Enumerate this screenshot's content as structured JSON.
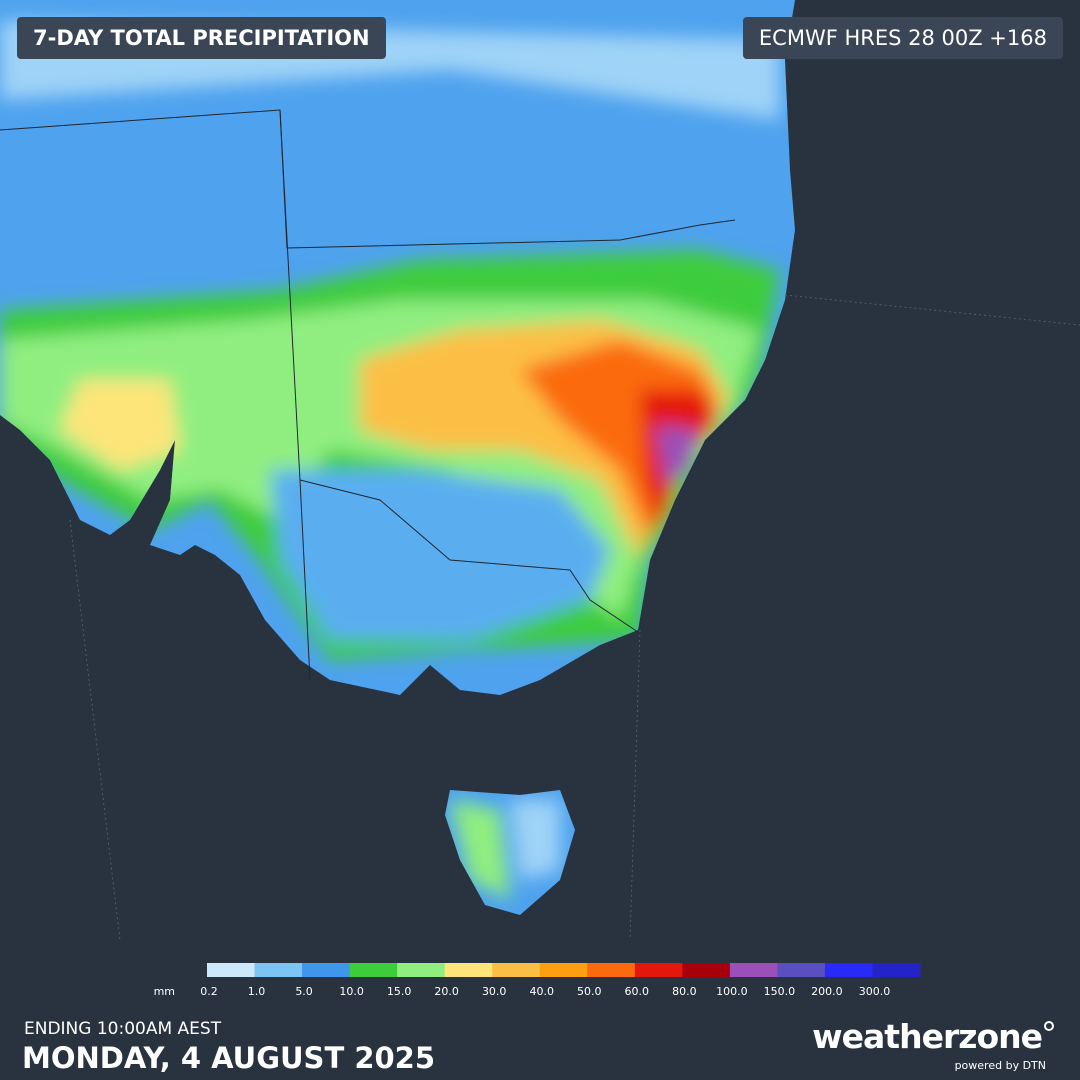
{
  "header": {
    "title": "7-DAY TOTAL PRECIPITATION",
    "model": "ECMWF HRES 28 00Z +168"
  },
  "legend": {
    "unit": "mm",
    "items": [
      {
        "label": "0.2",
        "color": "#cde7fb"
      },
      {
        "label": "1.0",
        "color": "#7cc4f4"
      },
      {
        "label": "5.0",
        "color": "#3f97ec"
      },
      {
        "label": "10.0",
        "color": "#3ccc3c"
      },
      {
        "label": "15.0",
        "color": "#90ee80"
      },
      {
        "label": "20.0",
        "color": "#fde57a"
      },
      {
        "label": "30.0",
        "color": "#fcbf45"
      },
      {
        "label": "40.0",
        "color": "#fca011"
      },
      {
        "label": "50.0",
        "color": "#fb6a0e"
      },
      {
        "label": "60.0",
        "color": "#e4170c"
      },
      {
        "label": "80.0",
        "color": "#a8000a"
      },
      {
        "label": "100.0",
        "color": "#9b4fb8"
      },
      {
        "label": "150.0",
        "color": "#5a4fbf"
      },
      {
        "label": "200.0",
        "color": "#2a2af8"
      },
      {
        "label": "300.0",
        "color": "#2323c8"
      }
    ]
  },
  "footer": {
    "ending": "ENDING 10:00AM AEST",
    "date": "MONDAY, 4 AUGUST 2025"
  },
  "logo": {
    "name": "weatherzone",
    "powered": "powered by DTN"
  }
}
